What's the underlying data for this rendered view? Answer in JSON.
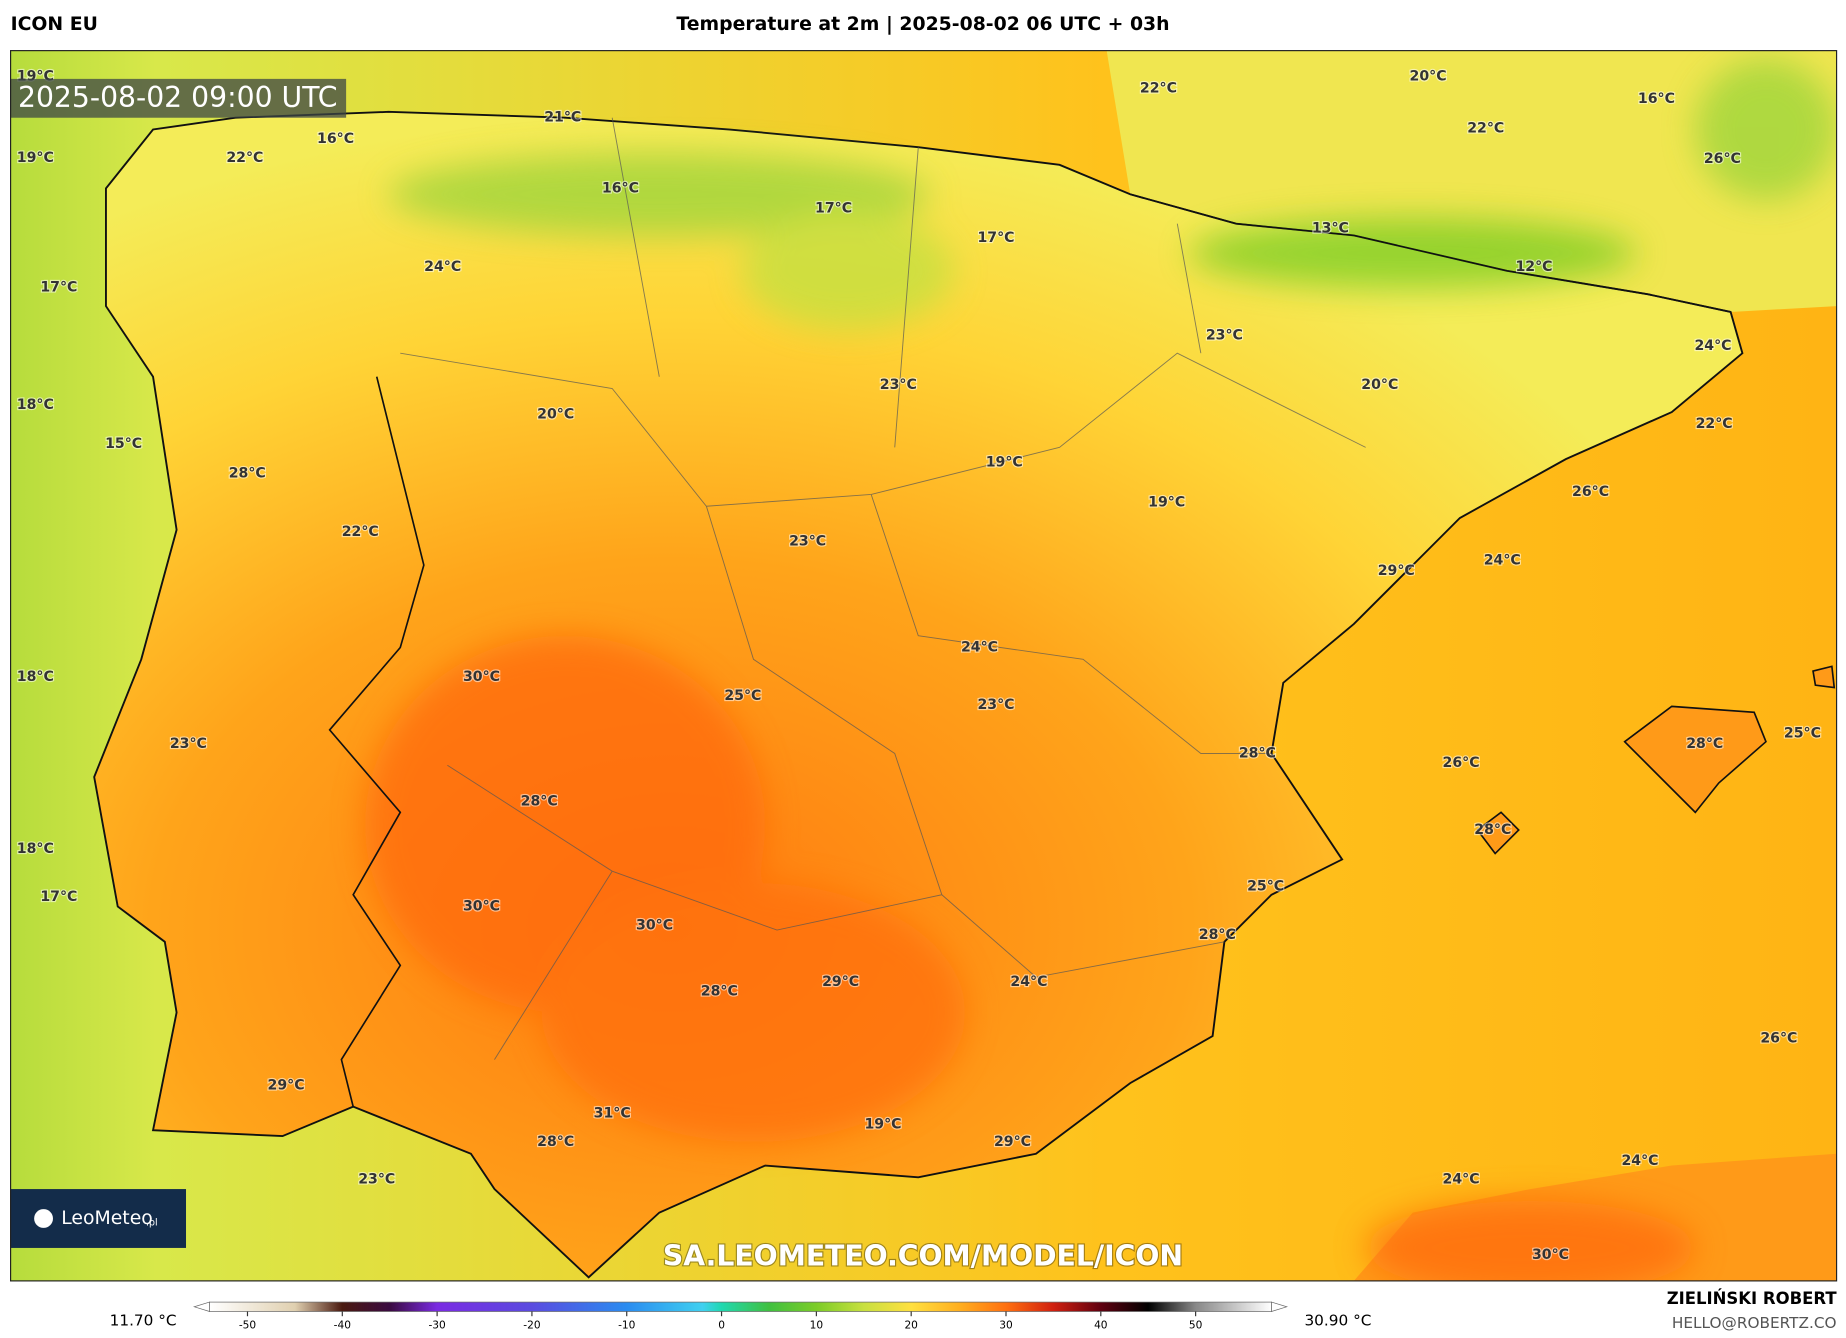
{
  "header": {
    "model": "ICON EU",
    "title": "Temperature at 2m | 2025-08-02 06 UTC + 03h",
    "author": "ZIELIŃSKI ROBERT",
    "contact": "HELLO@ROBERTZ.CO"
  },
  "map": {
    "timestamp": "2025-08-02 09:00 UTC",
    "watermark": "SA.LEOMETEO.COM/MODEL/ICON",
    "logo_text": "LeoMeteo",
    "logo_suffix": ".pl",
    "labels": [
      "19°C",
      "21°C",
      "16°C",
      "22°C",
      "19°C",
      "16°C",
      "17°C",
      "17°C",
      "22°C",
      "20°C",
      "22°C",
      "16°C",
      "26°C",
      "13°C",
      "12°C",
      "24°C",
      "17°C",
      "23°C",
      "24°C",
      "20°C",
      "23°C",
      "18°C",
      "20°C",
      "22°C",
      "15°C",
      "19°C",
      "28°C",
      "26°C",
      "19°C",
      "22°C",
      "23°C",
      "24°C",
      "29°C",
      "24°C",
      "18°C",
      "30°C",
      "25°C",
      "23°C",
      "25°C",
      "23°C",
      "28°C",
      "28°C",
      "26°C",
      "28°C",
      "28°C",
      "18°C",
      "25°C",
      "17°C",
      "30°C",
      "30°C",
      "28°C",
      "29°C",
      "24°C",
      "28°C",
      "26°C",
      "29°C",
      "31°C",
      "19°C",
      "29°C",
      "28°C",
      "23°C",
      "24°C",
      "24°C",
      "30°C"
    ]
  },
  "colorbar": {
    "min_label": "11.70 °C",
    "max_label": "30.90 °C",
    "lim": [
      -54,
      58
    ],
    "ticks": [
      -50,
      -40,
      -30,
      -20,
      -10,
      0,
      10,
      20,
      30,
      40,
      50
    ]
  }
}
